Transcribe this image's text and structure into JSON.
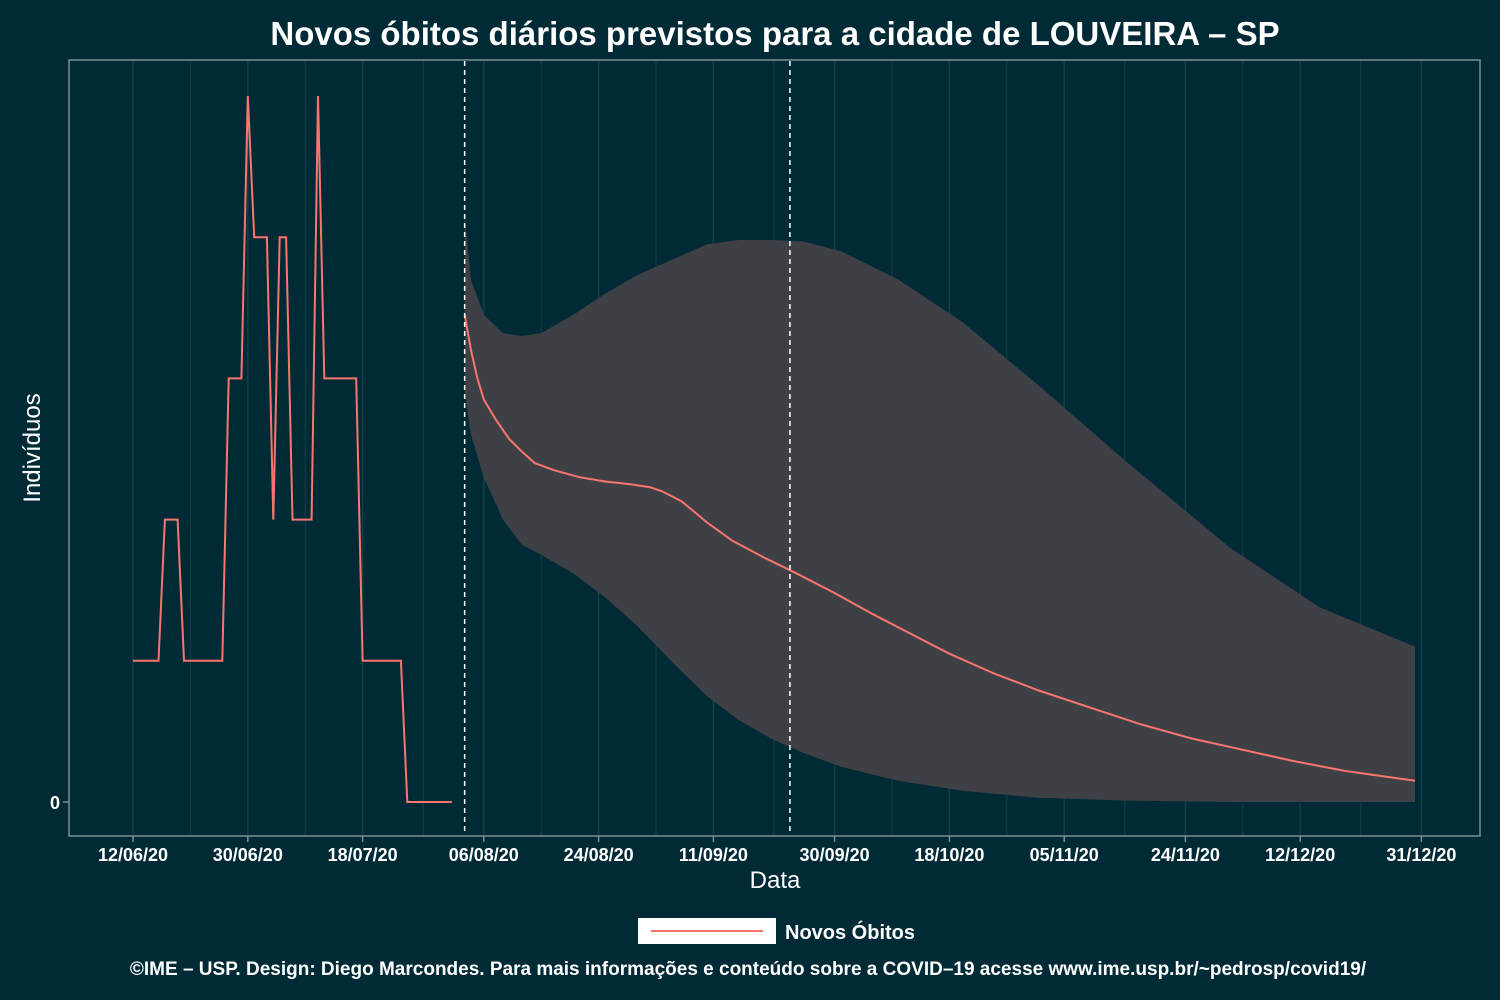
{
  "chart_data": {
    "type": "line",
    "title": "Novos óbitos diários previstos para a cidade de LOUVEIRA – SP",
    "xlabel": "Data",
    "ylabel": "Indivíduos",
    "x_ticks": [
      "12/06/20",
      "30/06/20",
      "18/07/20",
      "06/08/20",
      "24/08/20",
      "11/09/20",
      "30/09/20",
      "18/10/20",
      "05/11/20",
      "24/11/20",
      "12/12/20",
      "31/12/20"
    ],
    "y_ticks": [
      "0"
    ],
    "y_unit_note": "y values in relative units; only tick 0 is labeled",
    "ylim": [
      -0.25,
      5.25
    ],
    "vlines": [
      "2020-08-03",
      "2020-09-23"
    ],
    "series": [
      {
        "name": "Novos Óbitos",
        "kind": "observed",
        "color": "#f8766d",
        "points": [
          [
            "2020-06-12",
            1
          ],
          [
            "2020-06-16",
            1
          ],
          [
            "2020-06-17",
            2
          ],
          [
            "2020-06-19",
            2
          ],
          [
            "2020-06-20",
            1
          ],
          [
            "2020-06-26",
            1
          ],
          [
            "2020-06-27",
            3
          ],
          [
            "2020-06-29",
            3
          ],
          [
            "2020-06-30",
            5
          ],
          [
            "2020-07-01",
            4
          ],
          [
            "2020-07-03",
            4
          ],
          [
            "2020-07-04",
            2
          ],
          [
            "2020-07-05",
            4
          ],
          [
            "2020-07-06",
            4
          ],
          [
            "2020-07-07",
            2
          ],
          [
            "2020-07-10",
            2
          ],
          [
            "2020-07-11",
            5
          ],
          [
            "2020-07-12",
            3
          ],
          [
            "2020-07-17",
            3
          ],
          [
            "2020-07-18",
            1
          ],
          [
            "2020-07-24",
            1
          ],
          [
            "2020-07-25",
            0
          ],
          [
            "2020-08-01",
            0
          ]
        ]
      },
      {
        "name": "Novos Óbitos",
        "kind": "forecast",
        "color": "#f8766d",
        "points": [
          [
            "2020-08-03",
            3.45
          ],
          [
            "2020-08-04",
            3.2
          ],
          [
            "2020-08-05",
            3.0
          ],
          [
            "2020-08-06",
            2.85
          ],
          [
            "2020-08-08",
            2.7
          ],
          [
            "2020-08-10",
            2.57
          ],
          [
            "2020-08-12",
            2.48
          ],
          [
            "2020-08-14",
            2.4
          ],
          [
            "2020-08-17",
            2.35
          ],
          [
            "2020-08-21",
            2.3
          ],
          [
            "2020-08-25",
            2.27
          ],
          [
            "2020-08-29",
            2.25
          ],
          [
            "2020-09-01",
            2.23
          ],
          [
            "2020-09-03",
            2.2
          ],
          [
            "2020-09-06",
            2.13
          ],
          [
            "2020-09-10",
            1.98
          ],
          [
            "2020-09-14",
            1.85
          ],
          [
            "2020-09-19",
            1.73
          ],
          [
            "2020-09-24",
            1.62
          ],
          [
            "2020-09-30",
            1.48
          ],
          [
            "2020-10-06",
            1.33
          ],
          [
            "2020-10-12",
            1.19
          ],
          [
            "2020-10-18",
            1.05
          ],
          [
            "2020-10-25",
            0.91
          ],
          [
            "2020-11-01",
            0.79
          ],
          [
            "2020-11-09",
            0.67
          ],
          [
            "2020-11-17",
            0.55
          ],
          [
            "2020-11-25",
            0.45
          ],
          [
            "2020-12-03",
            0.37
          ],
          [
            "2020-12-11",
            0.29
          ],
          [
            "2020-12-19",
            0.22
          ],
          [
            "2020-12-30",
            0.15
          ]
        ]
      }
    ],
    "band": {
      "color": "#3f3f46",
      "points": [
        [
          "2020-08-03",
          2.9,
          4.15
        ],
        [
          "2020-08-04",
          2.6,
          3.7
        ],
        [
          "2020-08-06",
          2.3,
          3.45
        ],
        [
          "2020-08-09",
          2.0,
          3.32
        ],
        [
          "2020-08-12",
          1.82,
          3.3
        ],
        [
          "2020-08-15",
          1.75,
          3.32
        ],
        [
          "2020-08-20",
          1.62,
          3.45
        ],
        [
          "2020-08-25",
          1.45,
          3.6
        ],
        [
          "2020-08-30",
          1.25,
          3.73
        ],
        [
          "2020-09-05",
          0.97,
          3.85
        ],
        [
          "2020-09-10",
          0.75,
          3.95
        ],
        [
          "2020-09-15",
          0.58,
          3.98
        ],
        [
          "2020-09-20",
          0.45,
          3.98
        ],
        [
          "2020-09-25",
          0.35,
          3.97
        ],
        [
          "2020-10-01",
          0.25,
          3.9
        ],
        [
          "2020-10-10",
          0.15,
          3.7
        ],
        [
          "2020-10-20",
          0.08,
          3.4
        ],
        [
          "2020-11-01",
          0.03,
          2.95
        ],
        [
          "2020-11-15",
          0.01,
          2.4
        ],
        [
          "2020-12-01",
          0.0,
          1.8
        ],
        [
          "2020-12-15",
          0.0,
          1.38
        ],
        [
          "2020-12-30",
          0.0,
          1.1
        ]
      ]
    },
    "legend": {
      "label": "Novos Óbitos",
      "position": "bottom"
    },
    "grid": true
  },
  "caption": "©IME – USP. Design: Diego Marcondes. Para mais informações e conteúdo sobre a COVID–19 acesse www.ime.usp.br/~pedrosp/covid19/",
  "colors": {
    "background": "#002b36",
    "line": "#f8766d",
    "band": "#3f3f46",
    "panel_border": "#7a8f94",
    "grid": "#11404a"
  }
}
